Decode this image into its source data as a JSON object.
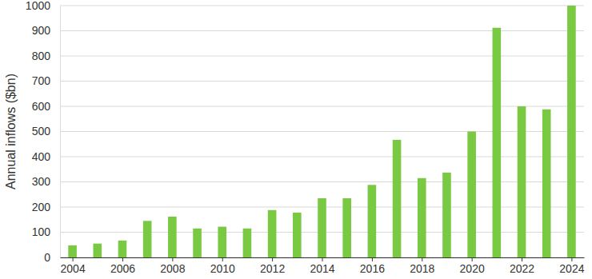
{
  "chart_data": {
    "type": "bar",
    "y_label": "Annual inflows ($bn)",
    "x": [
      2004,
      2005,
      2006,
      2007,
      2008,
      2009,
      2010,
      2011,
      2012,
      2013,
      2014,
      2015,
      2016,
      2017,
      2018,
      2019,
      2020,
      2021,
      2022,
      2023,
      2024
    ],
    "values": [
      48,
      55,
      67,
      145,
      162,
      115,
      122,
      115,
      188,
      178,
      235,
      235,
      288,
      467,
      315,
      337,
      500,
      912,
      600,
      588,
      1000
    ],
    "color": "#7ac943",
    "xlim": [
      2003.5,
      2024.5
    ],
    "xticks": [
      2004,
      2006,
      2008,
      2010,
      2012,
      2014,
      2016,
      2018,
      2020,
      2022,
      2024
    ],
    "ylim": [
      0,
      1000
    ],
    "yticks": [
      0,
      100,
      200,
      300,
      400,
      500,
      600,
      700,
      800,
      900,
      1000
    ],
    "grid": true
  }
}
